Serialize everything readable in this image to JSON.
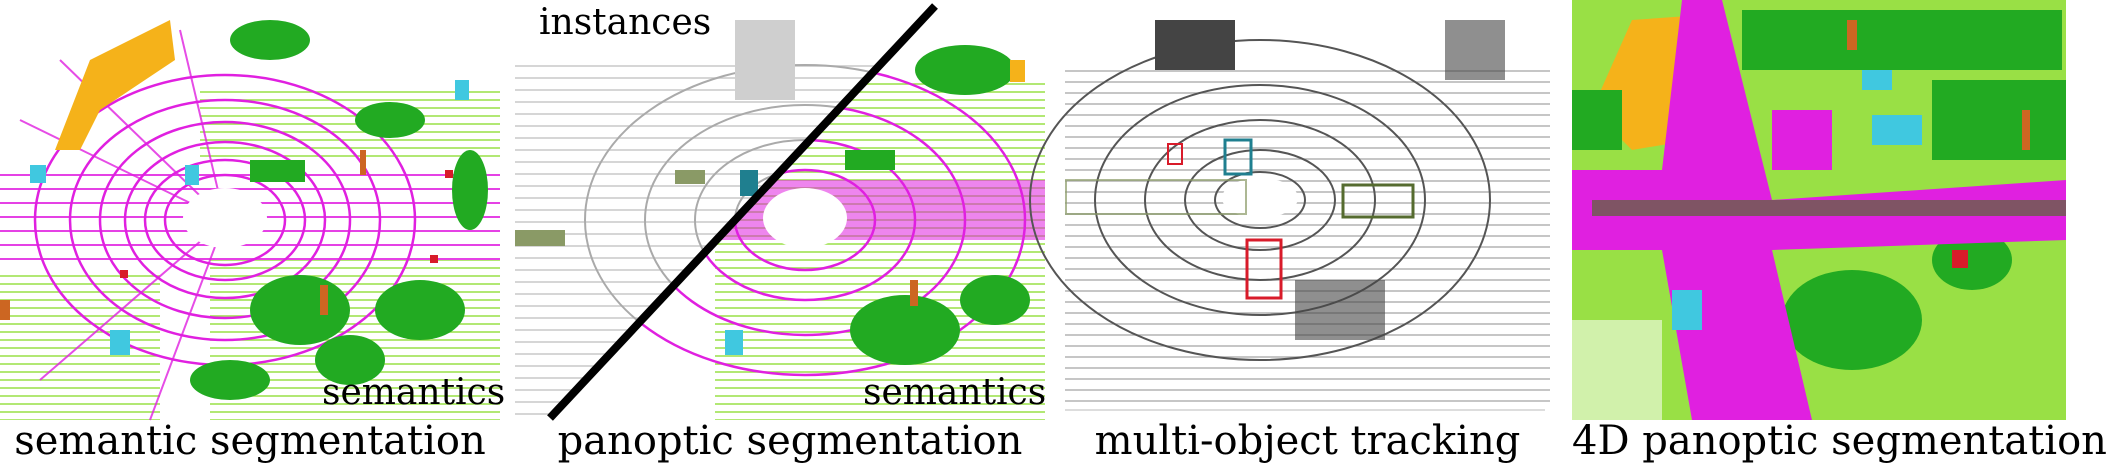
{
  "panels": [
    {
      "caption": "semantic segmentation",
      "overlay": "semantics"
    },
    {
      "caption": "panoptic segmentation",
      "overlay_top": "instances",
      "overlay_bottom": "semantics"
    },
    {
      "caption": "multi-object tracking"
    },
    {
      "caption": "4D panoptic segmentation"
    }
  ],
  "colors": {
    "road": "#e020e0",
    "vegetation": "#22aa22",
    "terrain": "#99e045",
    "building": "#f5b21a",
    "car": "#40c8e0",
    "trunk": "#cc6622",
    "gray_points": "#6a6a6a",
    "box_red": "#d81b2a",
    "box_teal": "#1f7f8f",
    "box_olive": "#556b2f"
  }
}
